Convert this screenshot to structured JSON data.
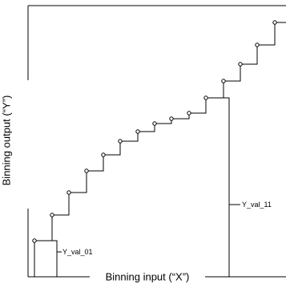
{
  "labels": {
    "x_axis": "Binning input (“X”)",
    "y_axis": "Binning output (“Y”)",
    "bracket_01": "Y_val_01",
    "bracket_11": "Y_val_11"
  },
  "chart_data": {
    "type": "line",
    "subtype": "step",
    "xlabel": "Binning input (“X”)",
    "ylabel": "Binning output (“Y”)",
    "grid": false,
    "legend": "none",
    "series": [
      {
        "values": [
          1,
          2,
          3,
          4,
          5,
          6,
          7,
          8,
          9,
          10,
          11,
          12,
          13,
          14,
          15
        ]
      }
    ],
    "annotations": [
      {
        "text": "Y_val_01",
        "step": 1
      },
      {
        "text": "Y_val_11",
        "step": 11
      }
    ]
  }
}
